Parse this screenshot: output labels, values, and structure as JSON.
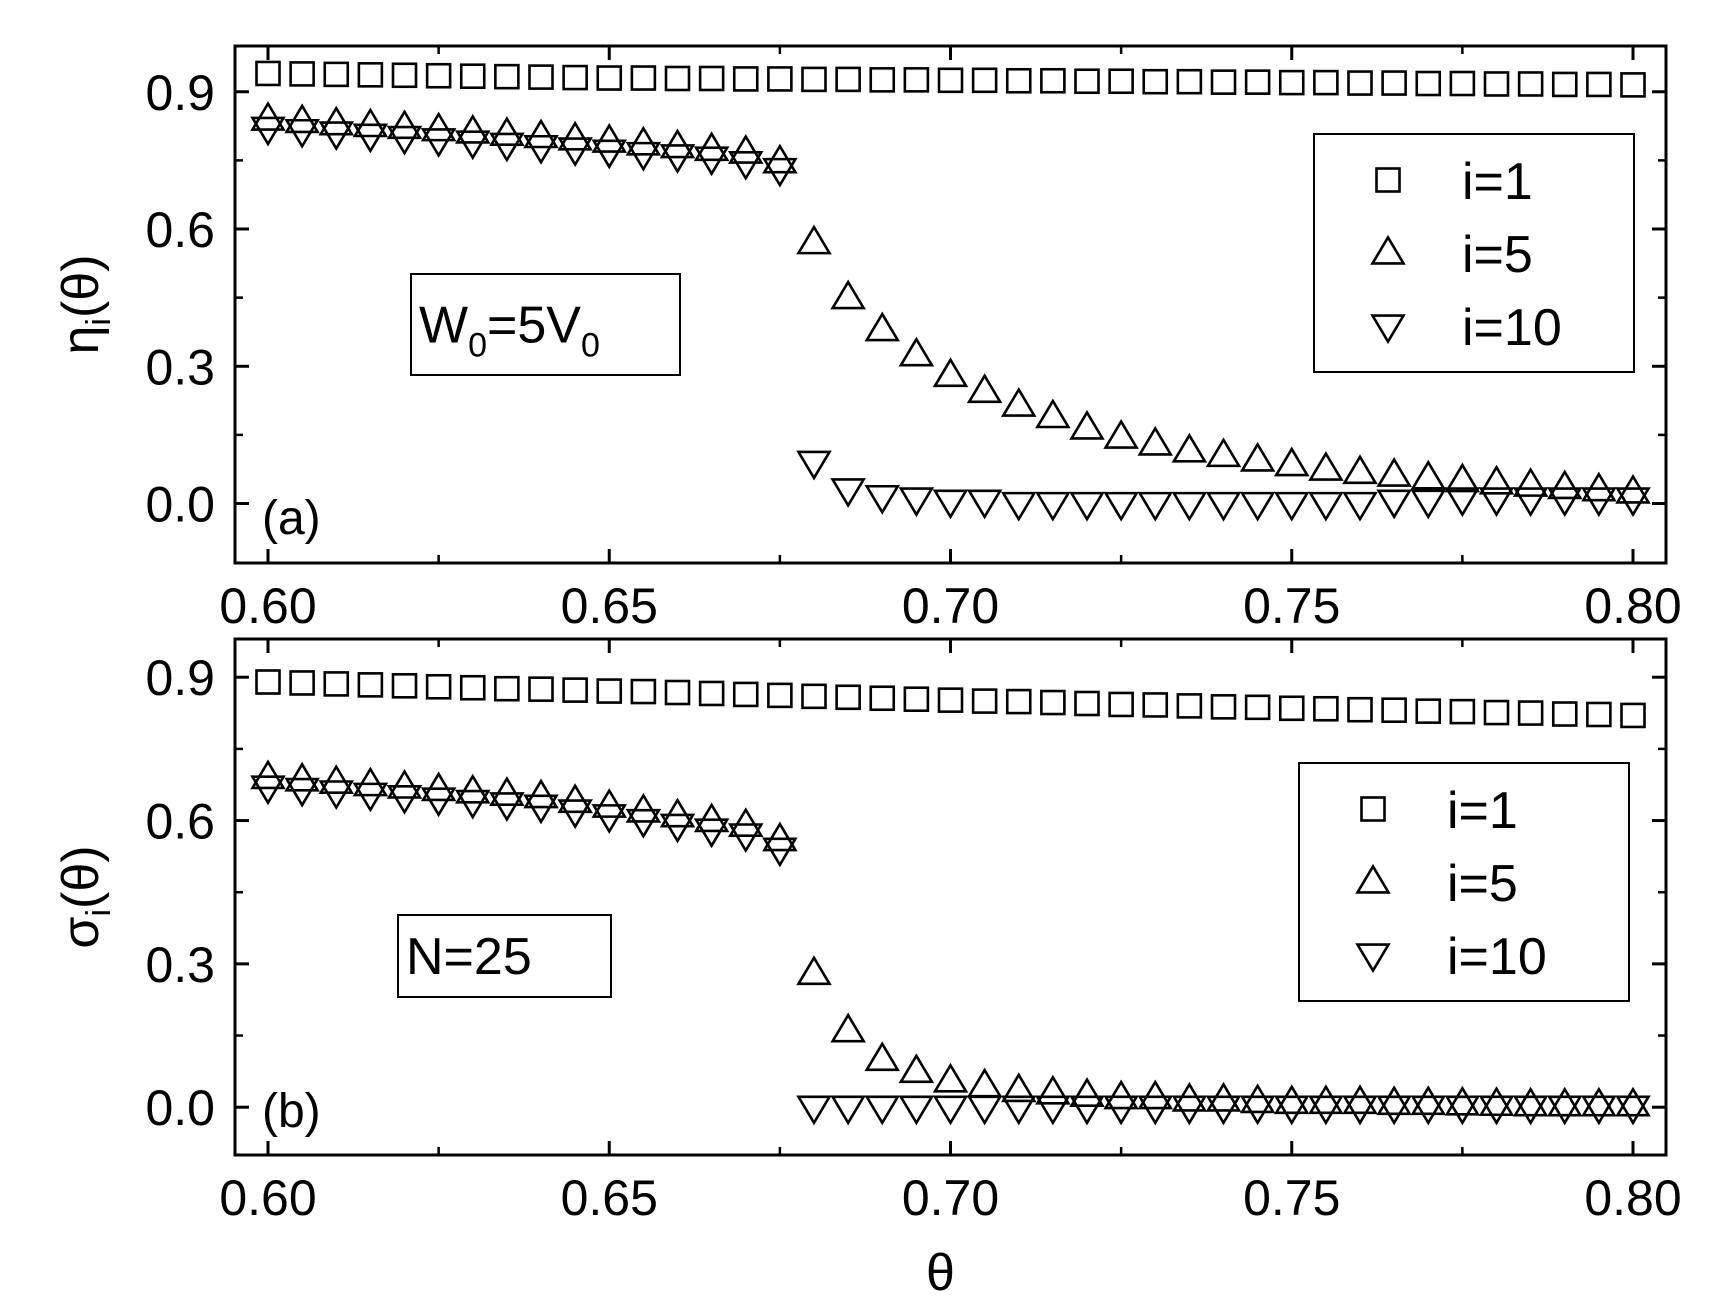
{
  "chart_data": [
    {
      "type": "scatter",
      "panel": "(a)",
      "ylabel_base": "η",
      "ylabel_sub": "i",
      "ylabel_suffix": "(θ)",
      "xlim": [
        0.6,
        0.8
      ],
      "ylim": [
        -0.13,
        1.0
      ],
      "xticks": [
        0.6,
        0.65,
        0.7,
        0.75,
        0.8
      ],
      "xtick_labels": [
        "0.60",
        "0.65",
        "0.70",
        "0.75",
        "0.80"
      ],
      "yticks": [
        0.0,
        0.3,
        0.6,
        0.9
      ],
      "ytick_labels": [
        "0.0",
        "0.3",
        "0.6",
        "0.9"
      ],
      "annotation": {
        "base1": "W",
        "sub1": "0",
        "mid": "=5V",
        "sub2": "0"
      },
      "legend": [
        "i=1",
        "i=5",
        "i=10"
      ],
      "legend_position": "top-right",
      "series": [
        {
          "name": "i=1",
          "marker": "square",
          "x": [
            0.6,
            0.605,
            0.61,
            0.615,
            0.62,
            0.625,
            0.63,
            0.635,
            0.64,
            0.645,
            0.65,
            0.655,
            0.66,
            0.665,
            0.67,
            0.675,
            0.68,
            0.685,
            0.69,
            0.695,
            0.7,
            0.705,
            0.71,
            0.715,
            0.72,
            0.725,
            0.73,
            0.735,
            0.74,
            0.745,
            0.75,
            0.755,
            0.76,
            0.765,
            0.77,
            0.775,
            0.78,
            0.785,
            0.79,
            0.795,
            0.8
          ],
          "y": [
            0.94,
            0.939,
            0.938,
            0.937,
            0.936,
            0.935,
            0.934,
            0.933,
            0.932,
            0.931,
            0.93,
            0.93,
            0.929,
            0.929,
            0.928,
            0.928,
            0.927,
            0.927,
            0.926,
            0.926,
            0.925,
            0.925,
            0.924,
            0.924,
            0.923,
            0.923,
            0.922,
            0.922,
            0.921,
            0.921,
            0.92,
            0.92,
            0.919,
            0.919,
            0.918,
            0.918,
            0.917,
            0.917,
            0.916,
            0.916,
            0.915
          ]
        },
        {
          "name": "i=5",
          "marker": "triangle-up",
          "x": [
            0.6,
            0.605,
            0.61,
            0.615,
            0.62,
            0.625,
            0.63,
            0.635,
            0.64,
            0.645,
            0.65,
            0.655,
            0.66,
            0.665,
            0.67,
            0.675,
            0.68,
            0.685,
            0.69,
            0.695,
            0.7,
            0.705,
            0.71,
            0.715,
            0.72,
            0.725,
            0.73,
            0.735,
            0.74,
            0.745,
            0.75,
            0.755,
            0.76,
            0.765,
            0.77,
            0.775,
            0.78,
            0.785,
            0.79,
            0.795,
            0.8
          ],
          "y": [
            0.84,
            0.835,
            0.83,
            0.826,
            0.822,
            0.817,
            0.812,
            0.807,
            0.802,
            0.797,
            0.792,
            0.786,
            0.78,
            0.774,
            0.768,
            0.747,
            0.57,
            0.45,
            0.38,
            0.325,
            0.28,
            0.245,
            0.215,
            0.19,
            0.165,
            0.145,
            0.13,
            0.115,
            0.105,
            0.095,
            0.085,
            0.075,
            0.068,
            0.062,
            0.056,
            0.05,
            0.045,
            0.04,
            0.035,
            0.03,
            0.025
          ]
        },
        {
          "name": "i=10",
          "marker": "triangle-down",
          "x": [
            0.6,
            0.605,
            0.61,
            0.615,
            0.62,
            0.625,
            0.63,
            0.635,
            0.64,
            0.645,
            0.65,
            0.655,
            0.66,
            0.665,
            0.67,
            0.675,
            0.68,
            0.685,
            0.69,
            0.695,
            0.7,
            0.705,
            0.71,
            0.715,
            0.72,
            0.725,
            0.73,
            0.735,
            0.74,
            0.745,
            0.75,
            0.755,
            0.76,
            0.765,
            0.77,
            0.775,
            0.78,
            0.785,
            0.79,
            0.795,
            0.8
          ],
          "y": [
            0.82,
            0.815,
            0.81,
            0.805,
            0.8,
            0.795,
            0.79,
            0.785,
            0.78,
            0.775,
            0.77,
            0.765,
            0.76,
            0.755,
            0.745,
            0.73,
            0.09,
            0.03,
            0.015,
            0.01,
            0.005,
            0.005,
            0.0,
            0.0,
            0.0,
            0.0,
            0.0,
            0.0,
            0.0,
            0.0,
            0.0,
            0.0,
            0.0,
            0.005,
            0.005,
            0.01,
            0.01,
            0.01,
            0.01,
            0.01,
            0.01
          ]
        }
      ]
    },
    {
      "type": "scatter",
      "panel": "(b)",
      "xlabel": "θ",
      "ylabel_base": "σ",
      "ylabel_sub": "i",
      "ylabel_suffix": "(θ)",
      "xlim": [
        0.6,
        0.8
      ],
      "ylim": [
        -0.1,
        0.98
      ],
      "xticks": [
        0.6,
        0.65,
        0.7,
        0.75,
        0.8
      ],
      "xtick_labels": [
        "0.60",
        "0.65",
        "0.70",
        "0.75",
        "0.80"
      ],
      "yticks": [
        0.0,
        0.3,
        0.6,
        0.9
      ],
      "ytick_labels": [
        "0.0",
        "0.3",
        "0.6",
        "0.9"
      ],
      "annotation": {
        "text": "N=25"
      },
      "legend": [
        "i=1",
        "i=5",
        "i=10"
      ],
      "legend_position": "center-right",
      "series": [
        {
          "name": "i=1",
          "marker": "square",
          "x": [
            0.6,
            0.605,
            0.61,
            0.615,
            0.62,
            0.625,
            0.63,
            0.635,
            0.64,
            0.645,
            0.65,
            0.655,
            0.66,
            0.665,
            0.67,
            0.675,
            0.68,
            0.685,
            0.69,
            0.695,
            0.7,
            0.705,
            0.71,
            0.715,
            0.72,
            0.725,
            0.73,
            0.735,
            0.74,
            0.745,
            0.75,
            0.755,
            0.76,
            0.765,
            0.77,
            0.775,
            0.78,
            0.785,
            0.79,
            0.795,
            0.8
          ],
          "y": [
            0.89,
            0.888,
            0.886,
            0.884,
            0.882,
            0.88,
            0.878,
            0.876,
            0.875,
            0.873,
            0.871,
            0.87,
            0.868,
            0.866,
            0.864,
            0.862,
            0.86,
            0.858,
            0.856,
            0.854,
            0.852,
            0.85,
            0.849,
            0.847,
            0.845,
            0.843,
            0.842,
            0.84,
            0.838,
            0.837,
            0.835,
            0.834,
            0.832,
            0.831,
            0.829,
            0.828,
            0.826,
            0.825,
            0.823,
            0.822,
            0.82
          ]
        },
        {
          "name": "i=5",
          "marker": "triangle-up",
          "x": [
            0.6,
            0.605,
            0.61,
            0.615,
            0.62,
            0.625,
            0.63,
            0.635,
            0.64,
            0.645,
            0.65,
            0.655,
            0.66,
            0.665,
            0.67,
            0.675,
            0.68,
            0.685,
            0.69,
            0.695,
            0.7,
            0.705,
            0.71,
            0.715,
            0.72,
            0.725,
            0.73,
            0.735,
            0.74,
            0.745,
            0.75,
            0.755,
            0.76,
            0.765,
            0.77,
            0.775,
            0.78,
            0.785,
            0.79,
            0.795,
            0.8
          ],
          "y": [
            0.69,
            0.685,
            0.68,
            0.675,
            0.67,
            0.665,
            0.66,
            0.655,
            0.65,
            0.64,
            0.63,
            0.62,
            0.61,
            0.6,
            0.59,
            0.56,
            0.28,
            0.16,
            0.1,
            0.075,
            0.055,
            0.045,
            0.035,
            0.03,
            0.025,
            0.02,
            0.02,
            0.015,
            0.015,
            0.012,
            0.01,
            0.01,
            0.01,
            0.008,
            0.008,
            0.007,
            0.006,
            0.005,
            0.005,
            0.005,
            0.005
          ]
        },
        {
          "name": "i=10",
          "marker": "triangle-down",
          "x": [
            0.6,
            0.605,
            0.61,
            0.615,
            0.62,
            0.625,
            0.63,
            0.635,
            0.64,
            0.645,
            0.65,
            0.655,
            0.66,
            0.665,
            0.67,
            0.675,
            0.68,
            0.685,
            0.69,
            0.695,
            0.7,
            0.705,
            0.71,
            0.715,
            0.72,
            0.725,
            0.73,
            0.735,
            0.74,
            0.745,
            0.75,
            0.755,
            0.76,
            0.765,
            0.77,
            0.775,
            0.78,
            0.785,
            0.79,
            0.795,
            0.8
          ],
          "y": [
            0.67,
            0.665,
            0.66,
            0.655,
            0.65,
            0.645,
            0.64,
            0.635,
            0.63,
            0.62,
            0.61,
            0.6,
            0.59,
            0.58,
            0.57,
            0.54,
            0.0,
            0.0,
            0.0,
            0.0,
            0.0,
            0.0,
            0.0,
            0.0,
            0.0,
            0.0,
            0.0,
            0.0,
            0.0,
            0.0,
            0.0,
            0.0,
            0.0,
            0.0,
            0.0,
            0.0,
            0.0,
            0.0,
            0.0,
            0.0,
            0.0
          ]
        }
      ]
    }
  ]
}
